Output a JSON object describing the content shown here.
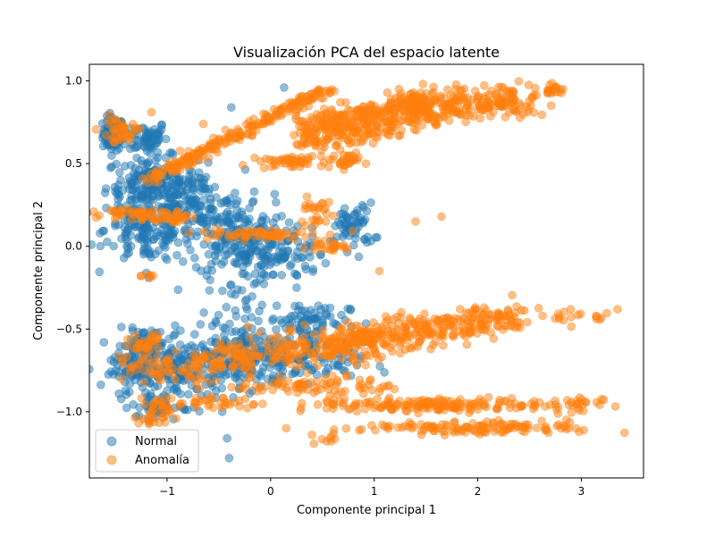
{
  "chart_data": {
    "type": "scatter",
    "title": "Visualización PCA del espacio latente",
    "xlabel": "Componente principal 1",
    "ylabel": "Componente principal 2",
    "xlim": [
      -1.75,
      3.6
    ],
    "ylim": [
      -1.4,
      1.1
    ],
    "xticks": [
      -1,
      0,
      1,
      2,
      3
    ],
    "yticks": [
      -1.0,
      -0.5,
      0.0,
      0.5,
      1.0
    ],
    "xtick_labels": [
      "−1",
      "0",
      "1",
      "2",
      "3"
    ],
    "ytick_labels": [
      "−1.0",
      "−0.5",
      "0.0",
      "0.5",
      "1.0"
    ],
    "grid": false,
    "legend_position": "lower-left",
    "series": [
      {
        "name": "Normal",
        "color": "#1f77b4",
        "alpha": 0.5,
        "clusters": [
          {
            "kind": "blob",
            "cx": -1.52,
            "cy": 0.68,
            "sx": 0.05,
            "sy": 0.05,
            "n": 110
          },
          {
            "kind": "blob",
            "cx": -1.2,
            "cy": 0.66,
            "sx": 0.1,
            "sy": 0.05,
            "n": 60
          },
          {
            "kind": "blob",
            "cx": -1.15,
            "cy": 0.38,
            "sx": 0.22,
            "sy": 0.08,
            "n": 180
          },
          {
            "kind": "blob",
            "cx": -1.2,
            "cy": 0.1,
            "sx": 0.2,
            "sy": 0.1,
            "n": 140
          },
          {
            "kind": "blob",
            "cx": -0.75,
            "cy": 0.22,
            "sx": 0.25,
            "sy": 0.12,
            "n": 150
          },
          {
            "kind": "blob",
            "cx": -0.3,
            "cy": 0.05,
            "sx": 0.22,
            "sy": 0.12,
            "n": 150
          },
          {
            "kind": "blob",
            "cx": 0.05,
            "cy": -0.05,
            "sx": 0.25,
            "sy": 0.08,
            "n": 90
          },
          {
            "kind": "blob",
            "cx": 0.8,
            "cy": 0.12,
            "sx": 0.1,
            "sy": 0.07,
            "n": 60
          },
          {
            "kind": "blob",
            "cx": -0.3,
            "cy": -0.3,
            "sx": 0.15,
            "sy": 0.08,
            "n": 25
          },
          {
            "kind": "blob",
            "cx": -1.25,
            "cy": -0.6,
            "sx": 0.12,
            "sy": 0.05,
            "n": 60
          },
          {
            "kind": "blob",
            "cx": -1.3,
            "cy": -0.75,
            "sx": 0.12,
            "sy": 0.05,
            "n": 70
          },
          {
            "kind": "blob",
            "cx": -0.8,
            "cy": -0.75,
            "sx": 0.3,
            "sy": 0.1,
            "n": 180
          },
          {
            "kind": "blob",
            "cx": -0.2,
            "cy": -0.65,
            "sx": 0.3,
            "sy": 0.1,
            "n": 170
          },
          {
            "kind": "blob",
            "cx": 0.35,
            "cy": -0.45,
            "sx": 0.2,
            "sy": 0.06,
            "n": 70
          },
          {
            "kind": "blob",
            "cx": 0.4,
            "cy": -0.7,
            "sx": 0.25,
            "sy": 0.06,
            "n": 70
          },
          {
            "kind": "blob",
            "cx": -1.1,
            "cy": -0.97,
            "sx": 0.12,
            "sy": 0.04,
            "n": 45
          }
        ],
        "points": [
          {
            "x": 0.13,
            "y": 0.96
          },
          {
            "x": -0.38,
            "y": 0.84
          },
          {
            "x": -1.2,
            "y": -0.16
          },
          {
            "x": -1.18,
            "y": -0.19
          },
          {
            "x": -0.42,
            "y": -1.16
          },
          {
            "x": -0.4,
            "y": -1.28
          },
          {
            "x": -0.1,
            "y": -0.2
          },
          {
            "x": 0.25,
            "y": -0.25
          },
          {
            "x": -0.8,
            "y": 0.53
          }
        ]
      },
      {
        "name": "Anomalía",
        "color": "#ff7f0e",
        "alpha": 0.5,
        "clusters": [
          {
            "kind": "line",
            "x0": -1.2,
            "y0": 0.4,
            "x1": 0.6,
            "y1": 0.97,
            "sx": 0.03,
            "sy": 0.02,
            "n": 220
          },
          {
            "kind": "line",
            "x0": 0.3,
            "y0": 0.72,
            "x1": 1.5,
            "y1": 0.86,
            "sx": 0.05,
            "sy": 0.04,
            "n": 220
          },
          {
            "kind": "line",
            "x0": 1.2,
            "y0": 0.85,
            "x1": 2.5,
            "y1": 0.88,
            "sx": 0.08,
            "sy": 0.05,
            "n": 220
          },
          {
            "kind": "line",
            "x0": 0.3,
            "y0": 0.62,
            "x1": 1.7,
            "y1": 0.8,
            "sx": 0.05,
            "sy": 0.04,
            "n": 150
          },
          {
            "kind": "blob",
            "cx": 2.72,
            "cy": 0.95,
            "sx": 0.05,
            "sy": 0.015,
            "n": 20
          },
          {
            "kind": "blob",
            "cx": 0.2,
            "cy": 0.51,
            "sx": 0.15,
            "sy": 0.02,
            "n": 45
          },
          {
            "kind": "blob",
            "cx": 0.7,
            "cy": 0.52,
            "sx": 0.1,
            "sy": 0.02,
            "n": 30
          },
          {
            "kind": "blob",
            "cx": -1.45,
            "cy": 0.7,
            "sx": 0.1,
            "sy": 0.04,
            "n": 40
          },
          {
            "kind": "blob",
            "cx": -1.3,
            "cy": 0.2,
            "sx": 0.15,
            "sy": 0.02,
            "n": 50
          },
          {
            "kind": "blob",
            "cx": -0.95,
            "cy": 0.18,
            "sx": 0.08,
            "sy": 0.02,
            "n": 25
          },
          {
            "kind": "blob",
            "cx": -0.2,
            "cy": 0.07,
            "sx": 0.3,
            "sy": 0.02,
            "n": 60
          },
          {
            "kind": "blob",
            "cx": 0.55,
            "cy": 0.0,
            "sx": 0.15,
            "sy": 0.015,
            "n": 25
          },
          {
            "kind": "blob",
            "cx": 0.45,
            "cy": 0.2,
            "sx": 0.08,
            "sy": 0.05,
            "n": 25
          },
          {
            "kind": "blob",
            "cx": -1.2,
            "cy": -0.18,
            "sx": 0.03,
            "sy": 0.01,
            "n": 6
          },
          {
            "kind": "line",
            "x0": -1.3,
            "y0": -0.75,
            "x1": 1.2,
            "y1": -0.55,
            "sx": 0.1,
            "sy": 0.05,
            "n": 300
          },
          {
            "kind": "line",
            "x0": 0.7,
            "y0": -0.58,
            "x1": 2.4,
            "y1": -0.42,
            "sx": 0.1,
            "sy": 0.05,
            "n": 280
          },
          {
            "kind": "blob",
            "cx": 2.9,
            "cy": -0.42,
            "sx": 0.2,
            "sy": 0.03,
            "n": 20
          },
          {
            "kind": "blob",
            "cx": -1.2,
            "cy": -0.58,
            "sx": 0.08,
            "sy": 0.03,
            "n": 30
          },
          {
            "kind": "blob",
            "cx": 0.4,
            "cy": -0.84,
            "sx": 0.4,
            "sy": 0.03,
            "n": 80
          },
          {
            "kind": "blob",
            "cx": 1.6,
            "cy": -0.96,
            "sx": 0.6,
            "sy": 0.02,
            "n": 170
          },
          {
            "kind": "blob",
            "cx": 1.9,
            "cy": -1.1,
            "sx": 0.5,
            "sy": 0.02,
            "n": 110
          },
          {
            "kind": "blob",
            "cx": 2.9,
            "cy": -0.96,
            "sx": 0.15,
            "sy": 0.03,
            "n": 25
          },
          {
            "kind": "blob",
            "cx": 2.8,
            "cy": -1.09,
            "sx": 0.08,
            "sy": 0.02,
            "n": 12
          },
          {
            "kind": "blob",
            "cx": -1.12,
            "cy": -1.02,
            "sx": 0.08,
            "sy": 0.05,
            "n": 35
          },
          {
            "kind": "blob",
            "cx": -0.6,
            "cy": -0.95,
            "sx": 0.25,
            "sy": 0.02,
            "n": 35
          },
          {
            "kind": "blob",
            "cx": 0.55,
            "cy": -1.15,
            "sx": 0.08,
            "sy": 0.03,
            "n": 10
          }
        ],
        "points": [
          {
            "x": -1.15,
            "y": 0.81
          },
          {
            "x": -0.65,
            "y": 0.74
          },
          {
            "x": 0.35,
            "y": 0.3
          },
          {
            "x": 1.4,
            "y": 0.15
          },
          {
            "x": 1.65,
            "y": 0.18
          },
          {
            "x": 0.15,
            "y": -1.1
          },
          {
            "x": 2.95,
            "y": -1.1
          },
          {
            "x": 3.35,
            "y": -0.38
          },
          {
            "x": 1.05,
            "y": -0.15
          }
        ]
      }
    ]
  }
}
